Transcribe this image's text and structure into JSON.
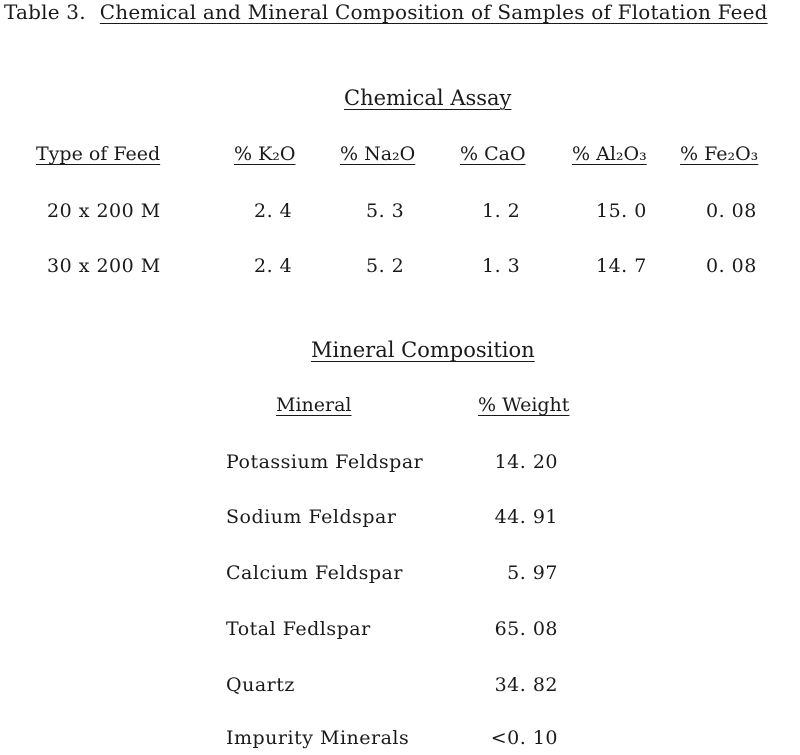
{
  "table": {
    "label": "Table 3.",
    "title": "Chemical and Mineral Composition of Samples of Flotation Feed"
  },
  "chemical_assay": {
    "title": "Chemical Assay",
    "headers": [
      "Type of Feed",
      "% K₂O",
      "% Na₂O",
      "% CaO",
      "% Al₂O₃",
      "% Fe₂O₃"
    ],
    "rows": [
      [
        "20 x 200 M",
        "2. 4",
        "5. 3",
        "1. 2",
        "15. 0",
        "0. 08"
      ],
      [
        "30 x 200 M",
        "2. 4",
        "5. 2",
        "1. 3",
        "14. 7",
        "0. 08"
      ]
    ]
  },
  "mineral_composition": {
    "title": "Mineral Composition",
    "headers": [
      "Mineral",
      "% Weight"
    ],
    "rows": [
      [
        "Potassium Feldspar",
        "14. 20"
      ],
      [
        "Sodium Feldspar",
        "44. 91"
      ],
      [
        "Calcium Feldspar",
        "5. 97"
      ],
      [
        "Total Fedlspar",
        "65. 08"
      ],
      [
        "Quartz",
        "34. 82"
      ],
      [
        "Impurity Minerals",
        "<0. 10"
      ]
    ]
  }
}
